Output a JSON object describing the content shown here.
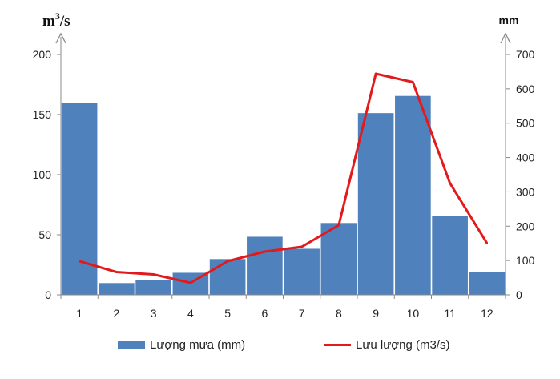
{
  "chart_data": {
    "type": "bar+line",
    "categories": [
      "1",
      "2",
      "3",
      "4",
      "5",
      "6",
      "7",
      "8",
      "9",
      "10",
      "11",
      "12"
    ],
    "series": [
      {
        "name": "Lượng mưa (mm)",
        "kind": "bar",
        "axis": "right",
        "color": "#4f81bd",
        "values": [
          560,
          35,
          45,
          65,
          105,
          170,
          135,
          210,
          530,
          580,
          230,
          68
        ]
      },
      {
        "name": "Lưu lượng (m3/s)",
        "kind": "line",
        "axis": "left",
        "color": "#e31a1c",
        "values": [
          28,
          19,
          17,
          10,
          28,
          36,
          40,
          58,
          184,
          177,
          93,
          43
        ]
      }
    ],
    "y_left": {
      "label_main": "m",
      "label_sup": "3",
      "label_tail": "/s",
      "ylim": [
        0,
        200
      ],
      "ticks": [
        "0",
        "50",
        "100",
        "150",
        "200"
      ],
      "tick_values": [
        0,
        50,
        100,
        150,
        200
      ]
    },
    "y_right": {
      "label": "mm",
      "ylim": [
        0,
        700
      ],
      "ticks": [
        "0",
        "100",
        "200",
        "300",
        "400",
        "500",
        "600",
        "700"
      ],
      "tick_values": [
        0,
        100,
        200,
        300,
        400,
        500,
        600,
        700
      ]
    },
    "grid": false,
    "legend_position": "bottom"
  }
}
